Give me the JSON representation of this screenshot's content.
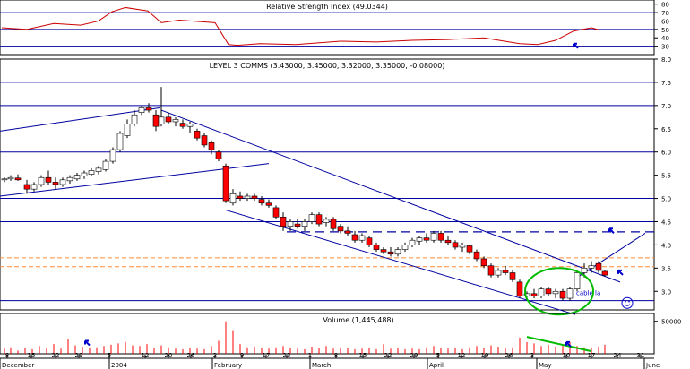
{
  "colors": {
    "grid": "#0000a0",
    "axis": "#000000",
    "up_candle": "#ffffff",
    "down_candle": "#ff0000",
    "rsi_line": "#cc0000",
    "trend_line": "#0000a0",
    "resistance_line": "#ff8c32",
    "annotation_green": "#00bb00",
    "annotation_arrow": "#0000cc"
  },
  "chart_data": [
    {
      "type": "line",
      "title": "Relative Strength Index (49.0344)",
      "ylim": [
        20,
        85
      ],
      "y_ticks": [
        80,
        70,
        60,
        50,
        40,
        30
      ],
      "grid_levels": [
        30,
        50,
        70
      ],
      "series": [
        {
          "name": "RSI",
          "x": [
            2,
            30,
            60,
            90,
            110,
            125,
            140,
            165,
            180,
            200,
            240,
            255,
            265,
            290,
            330,
            380,
            420,
            460,
            500,
            540,
            580,
            600,
            620,
            640,
            660,
            670
          ],
          "y": [
            52,
            50,
            57,
            55,
            60,
            71,
            76,
            72,
            58,
            61,
            58,
            32,
            31,
            33,
            32,
            36,
            35,
            37,
            38,
            40,
            33,
            32,
            37,
            48,
            52,
            49
          ]
        }
      ],
      "annotations": [
        {
          "kind": "arrow",
          "color": "blue",
          "x": 640,
          "y": 33
        }
      ]
    },
    {
      "type": "candlestick",
      "title": "LEVEL 3 COMMS (3.43000, 3.45000, 3.32000, 3.35000, -0.08000)",
      "ylim": [
        2.6,
        8.0
      ],
      "y_ticks": [
        "8.0",
        "7.5",
        "7.0",
        "6.5",
        "6.0",
        "5.5",
        "5.0",
        "4.5",
        "4.0",
        "3.5",
        "3.0"
      ],
      "horizontal_levels": [
        7.5,
        7.0,
        6.0,
        5.0,
        4.5,
        2.8
      ],
      "resistance_levels": [
        3.72,
        3.53
      ],
      "dashed_level": 4.28,
      "candles": [
        {
          "x": 5,
          "o": 5.4,
          "h": 5.45,
          "l": 5.35,
          "c": 5.42
        },
        {
          "x": 12,
          "o": 5.42,
          "h": 5.5,
          "l": 5.38,
          "c": 5.45
        },
        {
          "x": 20,
          "o": 5.44,
          "h": 5.52,
          "l": 5.38,
          "c": 5.4
        },
        {
          "x": 30,
          "o": 5.3,
          "h": 5.4,
          "l": 5.1,
          "c": 5.2
        },
        {
          "x": 38,
          "o": 5.2,
          "h": 5.35,
          "l": 5.15,
          "c": 5.3
        },
        {
          "x": 46,
          "o": 5.3,
          "h": 5.5,
          "l": 5.25,
          "c": 5.45
        },
        {
          "x": 54,
          "o": 5.45,
          "h": 5.6,
          "l": 5.3,
          "c": 5.35
        },
        {
          "x": 62,
          "o": 5.35,
          "h": 5.45,
          "l": 5.2,
          "c": 5.3
        },
        {
          "x": 70,
          "o": 5.3,
          "h": 5.45,
          "l": 5.25,
          "c": 5.4
        },
        {
          "x": 78,
          "o": 5.38,
          "h": 5.5,
          "l": 5.32,
          "c": 5.45
        },
        {
          "x": 86,
          "o": 5.42,
          "h": 5.55,
          "l": 5.38,
          "c": 5.5
        },
        {
          "x": 94,
          "o": 5.48,
          "h": 5.6,
          "l": 5.42,
          "c": 5.55
        },
        {
          "x": 102,
          "o": 5.52,
          "h": 5.65,
          "l": 5.48,
          "c": 5.6
        },
        {
          "x": 110,
          "o": 5.58,
          "h": 5.7,
          "l": 5.52,
          "c": 5.65
        },
        {
          "x": 118,
          "o": 5.62,
          "h": 5.85,
          "l": 5.58,
          "c": 5.8
        },
        {
          "x": 126,
          "o": 5.8,
          "h": 6.1,
          "l": 5.75,
          "c": 6.05
        },
        {
          "x": 134,
          "o": 6.05,
          "h": 6.45,
          "l": 6.0,
          "c": 6.4
        },
        {
          "x": 142,
          "o": 6.35,
          "h": 6.7,
          "l": 6.3,
          "c": 6.6
        },
        {
          "x": 150,
          "o": 6.6,
          "h": 6.9,
          "l": 6.55,
          "c": 6.8
        },
        {
          "x": 158,
          "o": 6.85,
          "h": 7.0,
          "l": 6.8,
          "c": 6.95
        },
        {
          "x": 166,
          "o": 6.95,
          "h": 7.05,
          "l": 6.85,
          "c": 6.9
        },
        {
          "x": 174,
          "o": 6.8,
          "h": 6.9,
          "l": 6.45,
          "c": 6.55
        },
        {
          "x": 180,
          "o": 6.6,
          "h": 7.4,
          "l": 6.55,
          "c": 6.75
        },
        {
          "x": 188,
          "o": 6.75,
          "h": 6.85,
          "l": 6.6,
          "c": 6.65
        },
        {
          "x": 196,
          "o": 6.65,
          "h": 6.75,
          "l": 6.55,
          "c": 6.7
        },
        {
          "x": 204,
          "o": 6.62,
          "h": 6.7,
          "l": 6.5,
          "c": 6.55
        },
        {
          "x": 212,
          "o": 6.55,
          "h": 6.65,
          "l": 6.4,
          "c": 6.6
        },
        {
          "x": 220,
          "o": 6.45,
          "h": 6.5,
          "l": 6.25,
          "c": 6.3
        },
        {
          "x": 228,
          "o": 6.35,
          "h": 6.4,
          "l": 6.1,
          "c": 6.15
        },
        {
          "x": 236,
          "o": 6.2,
          "h": 6.25,
          "l": 5.95,
          "c": 6.05
        },
        {
          "x": 244,
          "o": 6.0,
          "h": 6.05,
          "l": 5.8,
          "c": 5.85
        },
        {
          "x": 252,
          "o": 5.7,
          "h": 5.75,
          "l": 4.9,
          "c": 4.95
        },
        {
          "x": 260,
          "o": 4.9,
          "h": 5.2,
          "l": 4.85,
          "c": 5.1
        },
        {
          "x": 268,
          "o": 5.05,
          "h": 5.15,
          "l": 4.95,
          "c": 5.0
        },
        {
          "x": 276,
          "o": 5.0,
          "h": 5.1,
          "l": 4.95,
          "c": 5.05
        },
        {
          "x": 284,
          "o": 5.05,
          "h": 5.1,
          "l": 4.95,
          "c": 5.0
        },
        {
          "x": 292,
          "o": 4.98,
          "h": 5.05,
          "l": 4.85,
          "c": 4.9
        },
        {
          "x": 300,
          "o": 4.9,
          "h": 4.98,
          "l": 4.8,
          "c": 4.85
        },
        {
          "x": 308,
          "o": 4.8,
          "h": 4.85,
          "l": 4.55,
          "c": 4.6
        },
        {
          "x": 316,
          "o": 4.6,
          "h": 4.7,
          "l": 4.3,
          "c": 4.4
        },
        {
          "x": 324,
          "o": 4.4,
          "h": 4.55,
          "l": 4.3,
          "c": 4.5
        },
        {
          "x": 332,
          "o": 4.45,
          "h": 4.55,
          "l": 4.35,
          "c": 4.4
        },
        {
          "x": 340,
          "o": 4.4,
          "h": 4.55,
          "l": 4.3,
          "c": 4.5
        },
        {
          "x": 348,
          "o": 4.5,
          "h": 4.7,
          "l": 4.45,
          "c": 4.65
        },
        {
          "x": 356,
          "o": 4.65,
          "h": 4.7,
          "l": 4.4,
          "c": 4.45
        },
        {
          "x": 364,
          "o": 4.48,
          "h": 4.6,
          "l": 4.4,
          "c": 4.55
        },
        {
          "x": 372,
          "o": 4.55,
          "h": 4.6,
          "l": 4.3,
          "c": 4.35
        },
        {
          "x": 380,
          "o": 4.4,
          "h": 4.45,
          "l": 4.25,
          "c": 4.3
        },
        {
          "x": 388,
          "o": 4.3,
          "h": 4.4,
          "l": 4.2,
          "c": 4.25
        },
        {
          "x": 396,
          "o": 4.22,
          "h": 4.3,
          "l": 4.05,
          "c": 4.1
        },
        {
          "x": 404,
          "o": 4.1,
          "h": 4.25,
          "l": 4.05,
          "c": 4.2
        },
        {
          "x": 412,
          "o": 4.15,
          "h": 4.2,
          "l": 3.95,
          "c": 4.0
        },
        {
          "x": 420,
          "o": 4.0,
          "h": 4.05,
          "l": 3.85,
          "c": 3.9
        },
        {
          "x": 428,
          "o": 3.9,
          "h": 3.95,
          "l": 3.8,
          "c": 3.85
        },
        {
          "x": 436,
          "o": 3.85,
          "h": 3.95,
          "l": 3.75,
          "c": 3.8
        },
        {
          "x": 444,
          "o": 3.8,
          "h": 3.95,
          "l": 3.75,
          "c": 3.9
        },
        {
          "x": 452,
          "o": 3.9,
          "h": 4.05,
          "l": 3.85,
          "c": 4.0
        },
        {
          "x": 460,
          "o": 4.0,
          "h": 4.15,
          "l": 3.95,
          "c": 4.1
        },
        {
          "x": 468,
          "o": 4.08,
          "h": 4.2,
          "l": 4.0,
          "c": 4.15
        },
        {
          "x": 476,
          "o": 4.15,
          "h": 4.25,
          "l": 4.05,
          "c": 4.1
        },
        {
          "x": 484,
          "o": 4.1,
          "h": 4.3,
          "l": 4.05,
          "c": 4.25
        },
        {
          "x": 492,
          "o": 4.25,
          "h": 4.3,
          "l": 4.05,
          "c": 4.1
        },
        {
          "x": 500,
          "o": 4.1,
          "h": 4.2,
          "l": 4.0,
          "c": 4.05
        },
        {
          "x": 508,
          "o": 4.05,
          "h": 4.1,
          "l": 3.9,
          "c": 3.95
        },
        {
          "x": 516,
          "o": 3.95,
          "h": 4.05,
          "l": 3.85,
          "c": 4.0
        },
        {
          "x": 524,
          "o": 3.98,
          "h": 4.0,
          "l": 3.8,
          "c": 3.85
        },
        {
          "x": 532,
          "o": 3.85,
          "h": 3.9,
          "l": 3.65,
          "c": 3.7
        },
        {
          "x": 540,
          "o": 3.7,
          "h": 3.75,
          "l": 3.5,
          "c": 3.55
        },
        {
          "x": 548,
          "o": 3.55,
          "h": 3.6,
          "l": 3.3,
          "c": 3.35
        },
        {
          "x": 556,
          "o": 3.35,
          "h": 3.5,
          "l": 3.3,
          "c": 3.45
        },
        {
          "x": 564,
          "o": 3.45,
          "h": 3.55,
          "l": 3.35,
          "c": 3.4
        },
        {
          "x": 572,
          "o": 3.4,
          "h": 3.45,
          "l": 3.2,
          "c": 3.25
        },
        {
          "x": 580,
          "o": 3.2,
          "h": 3.25,
          "l": 2.85,
          "c": 2.9
        },
        {
          "x": 588,
          "o": 2.9,
          "h": 3.0,
          "l": 2.8,
          "c": 2.95
        },
        {
          "x": 596,
          "o": 2.95,
          "h": 3.05,
          "l": 2.85,
          "c": 2.9
        },
        {
          "x": 604,
          "o": 2.9,
          "h": 3.1,
          "l": 2.85,
          "c": 3.05
        },
        {
          "x": 612,
          "o": 3.05,
          "h": 3.1,
          "l": 2.9,
          "c": 2.95
        },
        {
          "x": 620,
          "o": 2.95,
          "h": 3.05,
          "l": 2.85,
          "c": 3.0
        },
        {
          "x": 628,
          "o": 3.0,
          "h": 3.05,
          "l": 2.8,
          "c": 2.85
        },
        {
          "x": 636,
          "o": 2.85,
          "h": 3.1,
          "l": 2.8,
          "c": 3.05
        },
        {
          "x": 644,
          "o": 3.05,
          "h": 3.45,
          "l": 3.0,
          "c": 3.4
        },
        {
          "x": 652,
          "o": 3.4,
          "h": 3.6,
          "l": 3.3,
          "c": 3.5
        },
        {
          "x": 660,
          "o": 3.5,
          "h": 3.65,
          "l": 3.4,
          "c": 3.55
        },
        {
          "x": 668,
          "o": 3.6,
          "h": 3.65,
          "l": 3.4,
          "c": 3.45
        },
        {
          "x": 675,
          "o": 3.43,
          "h": 3.45,
          "l": 3.32,
          "c": 3.35
        }
      ],
      "trend_lines": [
        {
          "x1": 0,
          "y1": 6.45,
          "x2": 178,
          "y2": 6.95
        },
        {
          "x1": 0,
          "y1": 5.05,
          "x2": 300,
          "y2": 5.75
        },
        {
          "x1": 180,
          "y1": 6.9,
          "x2": 692,
          "y2": 3.2
        },
        {
          "x1": 252,
          "y1": 4.75,
          "x2": 642,
          "y2": 2.5
        },
        {
          "x1": 640,
          "y1": 3.25,
          "x2": 720,
          "y2": 4.25
        }
      ],
      "annotations": [
        {
          "kind": "text",
          "text": "cable la",
          "x": 643,
          "y": 2.98
        },
        {
          "kind": "ellipse",
          "x": 624,
          "y": 3.0
        },
        {
          "kind": "arrow",
          "x": 680,
          "y": 4.35
        },
        {
          "kind": "arrow",
          "x": 690,
          "y": 3.45
        },
        {
          "kind": "smiley",
          "x": 700,
          "y": 2.75
        }
      ]
    },
    {
      "type": "bar",
      "title": "Volume (1,445,488)",
      "ylim": [
        0,
        6200000
      ],
      "y_ticks": [
        {
          "label": "50000",
          "value": 5000000
        }
      ],
      "annotations": [
        {
          "kind": "line",
          "color": "green",
          "x1": 588,
          "y1": 2600000,
          "x2": 660,
          "y2": 400000
        },
        {
          "kind": "arrow",
          "x": 95,
          "y": 2000000
        },
        {
          "kind": "arrow",
          "x": 632,
          "y": 1800000
        }
      ]
    }
  ],
  "x_axis": {
    "ticks": [
      {
        "x": 8,
        "label": "8"
      },
      {
        "x": 35,
        "label": "15"
      },
      {
        "x": 62,
        "label": "22"
      },
      {
        "x": 88,
        "label": "29"
      },
      {
        "x": 122,
        "label": "5"
      },
      {
        "x": 162,
        "label": "12"
      },
      {
        "x": 188,
        "label": "20"
      },
      {
        "x": 213,
        "label": "26"
      },
      {
        "x": 240,
        "label": "2"
      },
      {
        "x": 270,
        "label": "9"
      },
      {
        "x": 297,
        "label": "17"
      },
      {
        "x": 320,
        "label": "23"
      },
      {
        "x": 346,
        "label": "1"
      },
      {
        "x": 375,
        "label": "8"
      },
      {
        "x": 405,
        "label": "15"
      },
      {
        "x": 433,
        "label": "22"
      },
      {
        "x": 462,
        "label": "29"
      },
      {
        "x": 489,
        "label": "5"
      },
      {
        "x": 515,
        "label": "12"
      },
      {
        "x": 541,
        "label": "19"
      },
      {
        "x": 568,
        "label": "26"
      },
      {
        "x": 594,
        "label": "3"
      },
      {
        "x": 632,
        "label": "10"
      },
      {
        "x": 660,
        "label": "17"
      },
      {
        "x": 689,
        "label": "24"
      },
      {
        "x": 715,
        "label": "31"
      }
    ],
    "months": [
      {
        "x": 0,
        "label": "December"
      },
      {
        "x": 122,
        "label": "2004"
      },
      {
        "x": 237,
        "label": "February"
      },
      {
        "x": 346,
        "label": "March"
      },
      {
        "x": 477,
        "label": "April"
      },
      {
        "x": 599,
        "label": "May"
      },
      {
        "x": 719,
        "label": "June"
      }
    ]
  },
  "volume_bars": {
    "x": [
      5,
      12,
      20,
      28,
      36,
      44,
      52,
      60,
      68,
      76,
      84,
      92,
      100,
      108,
      116,
      124,
      132,
      140,
      148,
      156,
      164,
      172,
      180,
      188,
      196,
      204,
      212,
      220,
      228,
      236,
      244,
      252,
      260,
      268,
      276,
      284,
      292,
      300,
      308,
      316,
      324,
      332,
      340,
      348,
      356,
      364,
      372,
      380,
      388,
      396,
      404,
      412,
      420,
      428,
      436,
      444,
      452,
      460,
      468,
      476,
      484,
      492,
      500,
      508,
      516,
      524,
      532,
      540,
      548,
      556,
      564,
      572,
      580,
      588,
      596,
      604,
      612,
      620,
      628,
      636,
      644,
      652,
      660,
      668,
      675
    ],
    "values": [
      800000,
      1000000,
      500000,
      900000,
      700000,
      1200000,
      900000,
      1500000,
      800000,
      2200000,
      1300000,
      1100000,
      900000,
      1000000,
      1200000,
      1400000,
      1600000,
      1800000,
      1300000,
      1200000,
      1500000,
      900000,
      1300000,
      1000000,
      800000,
      700000,
      900000,
      800000,
      700000,
      1200000,
      2000000,
      5000000,
      3500000,
      1500000,
      1000000,
      1100000,
      900000,
      800000,
      1000000,
      1200000,
      900000,
      800000,
      700000,
      1100000,
      900000,
      1200000,
      800000,
      1000000,
      900000,
      700000,
      800000,
      900000,
      700000,
      1500000,
      800000,
      900000,
      700000,
      800000,
      700000,
      1000000,
      1200000,
      900000,
      800000,
      900000,
      700000,
      1000000,
      1200000,
      900000,
      1300000,
      1100000,
      900000,
      1000000,
      2500000,
      1800000,
      1600000,
      1200000,
      1400000,
      1100000,
      1300000,
      1800000,
      1200000,
      1000000,
      900000,
      1100000,
      1400000
    ]
  }
}
